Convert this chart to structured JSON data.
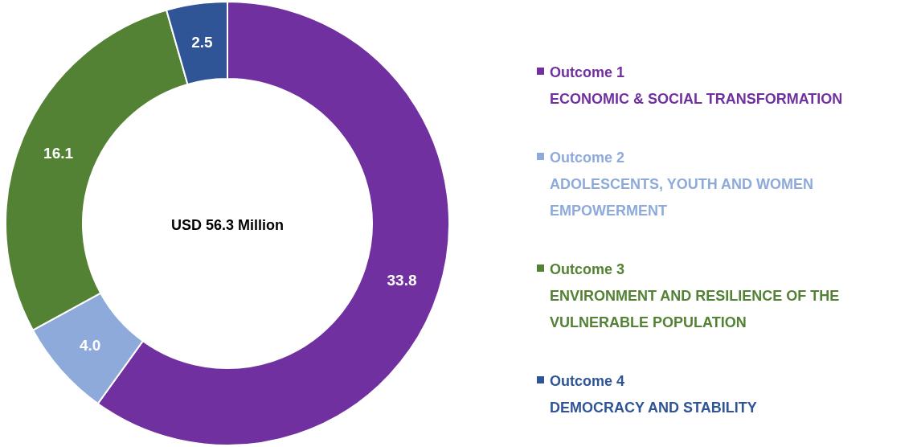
{
  "chart_data": {
    "type": "donut",
    "categories": [
      "Outcome 1\nECONOMIC & SOCIAL TRANSFORMATION",
      "Outcome 2\nADOLESCENTS, YOUTH AND WOMEN\nEMPOWERMENT",
      "Outcome 3\nENVIRONMENT AND RESILIENCE OF THE\nVULNERABLE POPULATION",
      "Outcome 4\nDEMOCRACY AND STABILITY"
    ],
    "values": [
      33.8,
      4.0,
      16.1,
      2.5
    ],
    "colors": [
      "#7030a0",
      "#8eaadb",
      "#548235",
      "#2f5597"
    ],
    "value_labels": [
      "33.8",
      "4.0",
      "16.1",
      "2.5"
    ],
    "legend": "right",
    "annotations": [
      "USD 56.3 Million"
    ]
  }
}
